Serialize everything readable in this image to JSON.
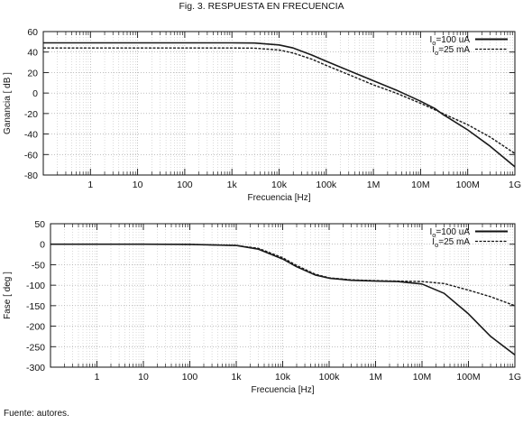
{
  "figure_title": "Fig. 3. RESPUESTA EN FRECUENCIA",
  "source_note": "Fuente: autores.",
  "chart_data": [
    {
      "type": "line",
      "xscale": "log",
      "xlabel": "Frecuencia [Hz]",
      "ylabel": "Ganancia [ dB ]",
      "xlim": [
        0.1,
        1000000000
      ],
      "ylim": [
        -80,
        60
      ],
      "grid": true,
      "legend_position": "top-right",
      "x_ticks": [
        1,
        10,
        100,
        1000,
        10000,
        100000,
        1000000,
        10000000,
        100000000,
        1000000000
      ],
      "x_tick_labels": [
        "1",
        "10",
        "100",
        "1k",
        "10k",
        "100k",
        "1M",
        "10M",
        "100M",
        "1G"
      ],
      "y_ticks": [
        -80,
        -60,
        -40,
        -20,
        0,
        20,
        40,
        60
      ],
      "y_tick_labels": [
        "-80",
        "-60",
        "-40",
        "-20",
        "0",
        "20",
        "40",
        "60"
      ],
      "legend": [
        {
          "label": "I_o=100 uA",
          "style": "solid"
        },
        {
          "label": "I_o=25 mA",
          "style": "dashed"
        }
      ],
      "series": [
        {
          "style": "solid",
          "x": [
            0.1,
            1,
            10,
            100,
            1000,
            3000,
            10000,
            20000,
            50000,
            100000,
            300000,
            1000000,
            3000000,
            10000000,
            20000000,
            30000000,
            100000000,
            300000000,
            1000000000
          ],
          "y": [
            49,
            49,
            49,
            49,
            49,
            48.8,
            47,
            44,
            37,
            31,
            22,
            12,
            3,
            -8,
            -15,
            -21,
            -36,
            -52,
            -72
          ]
        },
        {
          "style": "dashed",
          "x": [
            0.1,
            1,
            10,
            100,
            1000,
            3000,
            10000,
            20000,
            50000,
            100000,
            300000,
            1000000,
            3000000,
            10000000,
            30000000,
            100000000,
            300000000,
            1000000000
          ],
          "y": [
            44,
            44,
            44,
            44,
            44,
            43.8,
            42,
            39,
            33,
            27,
            18,
            8,
            0,
            -10,
            -20,
            -31,
            -43,
            -59
          ]
        }
      ]
    },
    {
      "type": "line",
      "xscale": "log",
      "xlabel": "Frecuencia [Hz]",
      "ylabel": "Fase [ deg ]",
      "xlim": [
        0.1,
        1000000000
      ],
      "ylim": [
        -300,
        50
      ],
      "grid": true,
      "legend_position": "top-right",
      "x_ticks": [
        1,
        10,
        100,
        1000,
        10000,
        100000,
        1000000,
        10000000,
        100000000,
        1000000000
      ],
      "x_tick_labels": [
        "1",
        "10",
        "100",
        "1k",
        "10k",
        "100k",
        "1M",
        "10M",
        "100M",
        "1G"
      ],
      "y_ticks": [
        -300,
        -250,
        -200,
        -150,
        -100,
        -50,
        0,
        50
      ],
      "y_tick_labels": [
        "-300",
        "-250",
        "-200",
        "-150",
        "-100",
        "-50",
        "0",
        "50"
      ],
      "legend": [
        {
          "label": "I_o=100 uA",
          "style": "solid"
        },
        {
          "label": "I_o=25 mA",
          "style": "dashed"
        }
      ],
      "series": [
        {
          "style": "solid",
          "x": [
            0.1,
            1,
            10,
            100,
            1000,
            3000,
            10000,
            20000,
            50000,
            100000,
            300000,
            1000000,
            3000000,
            10000000,
            30000000,
            100000000,
            300000000,
            1000000000
          ],
          "y": [
            0,
            0,
            0,
            -0.5,
            -3,
            -12,
            -36,
            -55,
            -75,
            -83,
            -88,
            -90,
            -91,
            -97,
            -120,
            -170,
            -225,
            -270
          ]
        },
        {
          "style": "dashed",
          "x": [
            0.1,
            1,
            10,
            100,
            1000,
            3000,
            10000,
            20000,
            50000,
            100000,
            300000,
            1000000,
            3000000,
            10000000,
            30000000,
            100000000,
            300000000,
            1000000000
          ],
          "y": [
            0,
            0,
            0,
            -0.5,
            -3,
            -10,
            -33,
            -52,
            -73,
            -82,
            -87,
            -89,
            -90,
            -91,
            -96,
            -112,
            -128,
            -150
          ]
        }
      ]
    }
  ]
}
